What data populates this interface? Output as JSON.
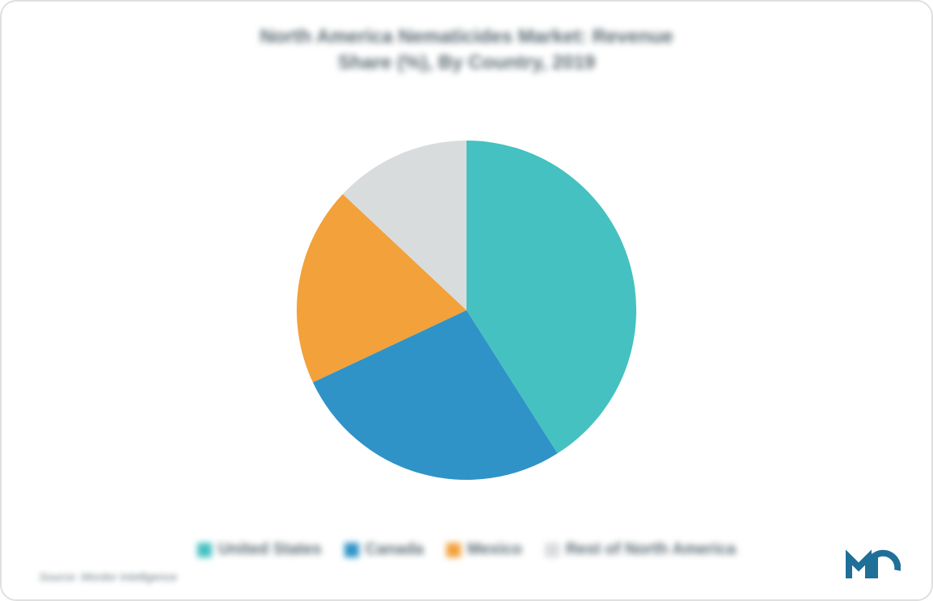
{
  "chart": {
    "type": "pie",
    "title_line1": "North America Nematicides Market: Revenue",
    "title_line2": "Share (%), By Country, 2019",
    "title_fontsize": 24,
    "title_color": "#5a6a72",
    "background_color": "#ffffff",
    "frame_border_color": "#e0e0e0",
    "frame_border_radius": 20,
    "pie_diameter": 420,
    "start_angle_deg": 0,
    "slices": [
      {
        "label": "United States",
        "value": 41,
        "color": "#45c1c1"
      },
      {
        "label": "Canada",
        "value": 27,
        "color": "#2f93c7"
      },
      {
        "label": "Mexico",
        "value": 19,
        "color": "#f2a13b"
      },
      {
        "label": "Rest of North America",
        "value": 13,
        "color": "#d9dcdd"
      }
    ],
    "legend_fontsize": 20,
    "legend_color": "#5a6a72",
    "swatch_size": 18,
    "source_text": "Source: Mordor Intelligence",
    "source_fontsize": 14,
    "source_color": "#6b7a82",
    "logo": {
      "bar_color": "#1f6f99",
      "arc_color": "#1f6f99"
    }
  }
}
